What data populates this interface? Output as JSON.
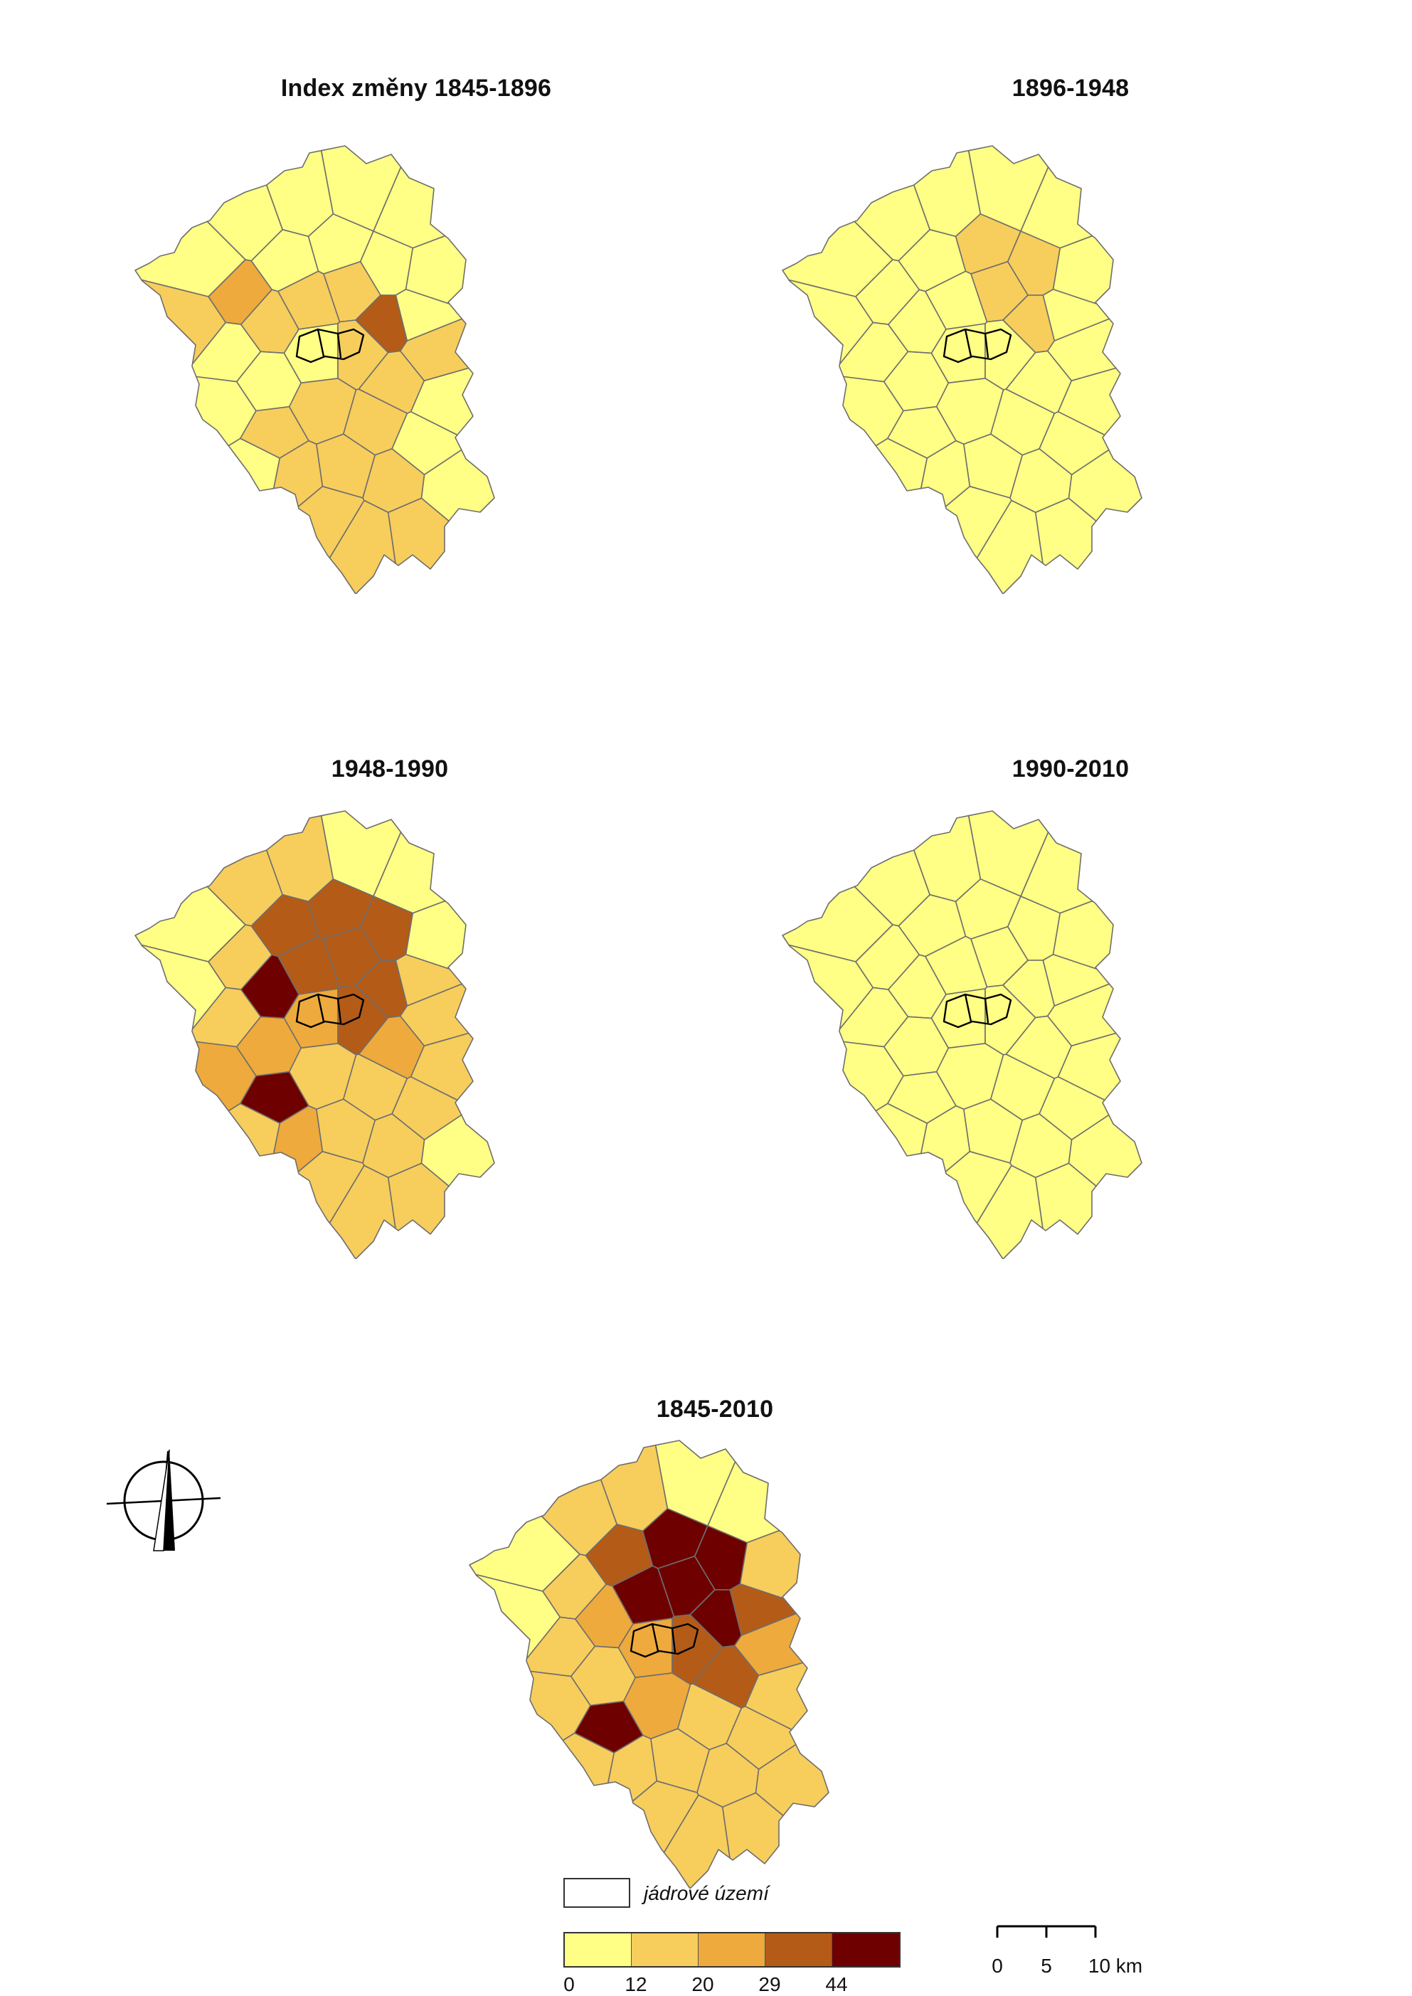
{
  "panels": [
    {
      "title": "Index změny 1845-1896",
      "map_state": "changes-1845-1896"
    },
    {
      "title": "1896-1948",
      "map_state": "changes-1896-1948"
    },
    {
      "title": "1948-1990",
      "map_state": "changes-1948-1990"
    },
    {
      "title": "1990-2010",
      "map_state": "changes-1990-2010"
    },
    {
      "title": "1845-2010",
      "map_state": "changes-1845-2010"
    }
  ],
  "legend": {
    "core_label": "jádrové území",
    "class_colors": [
      "#ffff85",
      "#f7cd5c",
      "#eeaa3c",
      "#b45b18",
      "#6e0000"
    ],
    "tick_labels": [
      "0",
      "12",
      "20",
      "29",
      "44"
    ]
  },
  "scale": {
    "labels": [
      "0",
      "5",
      "10 km"
    ]
  },
  "north_arrow_icon": "north-arrow-icon"
}
